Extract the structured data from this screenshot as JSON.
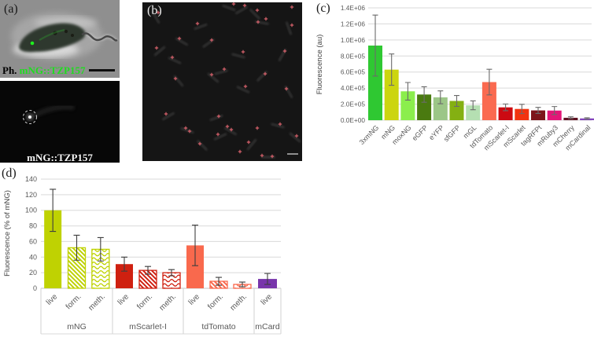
{
  "figure_panels": {
    "a": {
      "label": "(a)",
      "phase_caption_prefix": "Ph.",
      "phase_caption_name": "mNG::TZP157",
      "fluor_caption": "mNG::TZP157",
      "green_color": "#1fdd1f"
    },
    "b": {
      "label": "(b)",
      "marker_color": "#d4606a",
      "markers": [
        [
          116,
          2
        ],
        [
          130,
          4
        ],
        [
          20,
          13
        ],
        [
          146,
          10
        ],
        [
          190,
          6
        ],
        [
          157,
          21
        ],
        [
          147,
          25
        ],
        [
          70,
          27
        ],
        [
          190,
          29
        ],
        [
          88,
          48
        ],
        [
          47,
          46
        ],
        [
          18,
          58
        ],
        [
          128,
          63
        ],
        [
          181,
          62
        ],
        [
          38,
          70
        ],
        [
          42,
          97
        ],
        [
          104,
          85
        ],
        [
          88,
          92
        ],
        [
          131,
          107
        ],
        [
          156,
          91
        ],
        [
          183,
          110
        ],
        [
          30,
          142
        ],
        [
          97,
          145
        ],
        [
          55,
          160
        ],
        [
          60,
          164
        ],
        [
          73,
          180
        ],
        [
          96,
          168
        ],
        [
          108,
          158
        ],
        [
          113,
          162
        ],
        [
          135,
          178
        ],
        [
          124,
          190
        ],
        [
          146,
          160
        ],
        [
          175,
          155
        ],
        [
          196,
          170
        ],
        [
          165,
          196
        ],
        [
          152,
          195
        ]
      ],
      "cells": [
        [
          110,
          7,
          20
        ],
        [
          126,
          10,
          -30
        ],
        [
          17,
          19,
          60
        ],
        [
          143,
          15,
          45
        ],
        [
          152,
          26,
          10
        ],
        [
          74,
          31,
          -20
        ],
        [
          186,
          33,
          70
        ],
        [
          50,
          50,
          30
        ],
        [
          84,
          52,
          -35
        ],
        [
          22,
          62,
          -40
        ],
        [
          122,
          68,
          15
        ],
        [
          178,
          67,
          -60
        ],
        [
          41,
          74,
          25
        ],
        [
          46,
          100,
          50
        ],
        [
          100,
          89,
          -15
        ],
        [
          90,
          96,
          40
        ],
        [
          128,
          111,
          25
        ],
        [
          152,
          94,
          -45
        ],
        [
          186,
          114,
          60
        ],
        [
          33,
          145,
          -30
        ],
        [
          57,
          163,
          20
        ],
        [
          76,
          182,
          45
        ],
        [
          99,
          171,
          -25
        ],
        [
          112,
          164,
          30
        ],
        [
          139,
          181,
          -50
        ],
        [
          172,
          157,
          15
        ],
        [
          194,
          172,
          40
        ],
        [
          160,
          197,
          0
        ],
        [
          94,
          147,
          -20
        ]
      ]
    },
    "c": {
      "label": "(c)"
    },
    "d": {
      "label": "(d)"
    }
  },
  "chart_data": [
    {
      "type": "bar",
      "panel": "c",
      "title": "",
      "xlabel": "",
      "ylabel": "Fluorescence (au)",
      "ylim": [
        0,
        1400000
      ],
      "ytick_step": 200000,
      "ytick_labels": [
        "0.0E+00",
        "2.0E+05",
        "4.0E+05",
        "6.0E+05",
        "8.0E+05",
        "1.0E+06",
        "1.2E+06",
        "1.4E+06"
      ],
      "grid": true,
      "legend": false,
      "categories": [
        "3xmNG",
        "mNG",
        "moxNG",
        "eGFP",
        "eYFP",
        "sfGFP",
        "mGL",
        "tdTomato",
        "mScarlet-I",
        "mScarlet",
        "tagRFPt",
        "mRuby3",
        "mCherry",
        "mCardinal"
      ],
      "values": [
        930000,
        630000,
        360000,
        320000,
        285000,
        240000,
        185000,
        475000,
        160000,
        140000,
        122000,
        120000,
        30000,
        22000
      ],
      "errors": [
        380000,
        195000,
        110000,
        97000,
        80000,
        68000,
        55000,
        160000,
        42000,
        58000,
        38000,
        50000,
        12000,
        8000
      ],
      "colors": [
        "#2fc832",
        "#ccd50f",
        "#8bee4d",
        "#4a7a10",
        "#9cc687",
        "#84b012",
        "#b5dfb2",
        "#fa6a50",
        "#cc0a12",
        "#f2330f",
        "#7d151a",
        "#e31678",
        "#5e1020",
        "#8344bd"
      ]
    },
    {
      "type": "bar",
      "panel": "d",
      "grouped": true,
      "title": "",
      "xlabel": "",
      "ylabel": "Fluorescence (% of mNG)",
      "ylim": [
        0,
        140
      ],
      "ytick_step": 20,
      "grid": true,
      "legend": false,
      "groups": [
        {
          "label": "mNG",
          "color": "#bfd202",
          "bars": [
            {
              "label": "live",
              "value": 100,
              "error": 27,
              "pattern": "solid"
            },
            {
              "label": "form.",
              "value": 52,
              "error": 16,
              "pattern": "diagonal"
            },
            {
              "label": "meth.",
              "value": 50,
              "error": 15,
              "pattern": "wave"
            }
          ]
        },
        {
          "label": "mScarlet-I",
          "color": "#cf2010",
          "bars": [
            {
              "label": "live",
              "value": 31,
              "error": 9,
              "pattern": "solid"
            },
            {
              "label": "form.",
              "value": 23,
              "error": 5,
              "pattern": "diagonal"
            },
            {
              "label": "meth.",
              "value": 20,
              "error": 4,
              "pattern": "wave"
            }
          ]
        },
        {
          "label": "tdTomato",
          "color": "#f9694d",
          "bars": [
            {
              "label": "live",
              "value": 55,
              "error": 26,
              "pattern": "solid"
            },
            {
              "label": "form.",
              "value": 9,
              "error": 5,
              "pattern": "diagonal"
            },
            {
              "label": "meth.",
              "value": 5,
              "error": 3,
              "pattern": "wave"
            }
          ]
        },
        {
          "label": "mCard",
          "color": "#7836ab",
          "bars": [
            {
              "label": "live",
              "value": 12,
              "error": 7,
              "pattern": "solid"
            }
          ]
        }
      ]
    }
  ]
}
